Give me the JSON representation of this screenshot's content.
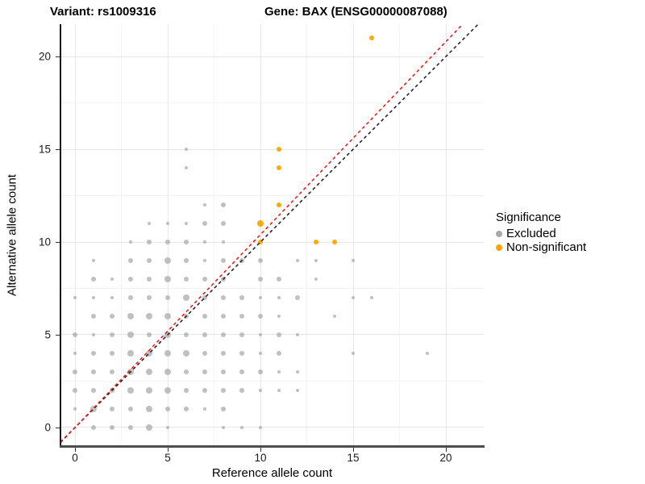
{
  "titles": {
    "variant": "Variant: rs1009316",
    "gene": "Gene: BAX (ENSG00000087088)"
  },
  "legend": {
    "title": "Significance",
    "items": [
      {
        "label": "Excluded",
        "color": "#a8a8a8"
      },
      {
        "label": "Non-significant",
        "color": "#FFA500"
      }
    ]
  },
  "chart_data": {
    "type": "scatter",
    "xlabel": "Reference allele count",
    "ylabel": "Alternative allele count",
    "xlim": [
      -0.783,
      22.04
    ],
    "ylim": [
      -0.957,
      21.74
    ],
    "x_ticks": [
      0,
      5,
      10,
      15,
      20
    ],
    "y_ticks": [
      0,
      5,
      10,
      15,
      20
    ],
    "x_minor": [
      2.5,
      7.5,
      12.5,
      17.5
    ],
    "y_minor": [
      2.5,
      7.5,
      12.5,
      17.5
    ],
    "grid": "on",
    "legend_position": "right",
    "point_diameters": {
      "s": 4.5,
      "m": 6.5,
      "l": 8.5
    },
    "series": [
      {
        "name": "Excluded",
        "color": "#a8a8a8",
        "opacity": 0.72,
        "points": [
          [
            1,
            0,
            "m"
          ],
          [
            2,
            0,
            "m"
          ],
          [
            3,
            0,
            "m"
          ],
          [
            4,
            0,
            "l"
          ],
          [
            5,
            0,
            "s"
          ],
          [
            8,
            0,
            "s"
          ],
          [
            9,
            0,
            "s"
          ],
          [
            10,
            0,
            "s"
          ],
          [
            0,
            1,
            "s"
          ],
          [
            1,
            1,
            "l"
          ],
          [
            2,
            1,
            "m"
          ],
          [
            3,
            1,
            "m"
          ],
          [
            4,
            1,
            "l"
          ],
          [
            5,
            1,
            "m"
          ],
          [
            6,
            1,
            "m"
          ],
          [
            7,
            1,
            "s"
          ],
          [
            8,
            1,
            "m"
          ],
          [
            0,
            2,
            "m"
          ],
          [
            1,
            2,
            "m"
          ],
          [
            2,
            2,
            "m"
          ],
          [
            3,
            2,
            "l"
          ],
          [
            4,
            2,
            "l"
          ],
          [
            5,
            2,
            "l"
          ],
          [
            6,
            2,
            "m"
          ],
          [
            7,
            2,
            "m"
          ],
          [
            8,
            2,
            "m"
          ],
          [
            9,
            2,
            "m"
          ],
          [
            10,
            2,
            "s"
          ],
          [
            11,
            2,
            "s"
          ],
          [
            12,
            2,
            "s"
          ],
          [
            0,
            3,
            "m"
          ],
          [
            1,
            3,
            "m"
          ],
          [
            2,
            3,
            "m"
          ],
          [
            3,
            3,
            "l"
          ],
          [
            4,
            3,
            "l"
          ],
          [
            5,
            3,
            "l"
          ],
          [
            6,
            3,
            "m"
          ],
          [
            7,
            3,
            "m"
          ],
          [
            8,
            3,
            "m"
          ],
          [
            9,
            3,
            "m"
          ],
          [
            10,
            3,
            "m"
          ],
          [
            11,
            3,
            "s"
          ],
          [
            12,
            3,
            "s"
          ],
          [
            0,
            4,
            "s"
          ],
          [
            1,
            4,
            "m"
          ],
          [
            2,
            4,
            "m"
          ],
          [
            3,
            4,
            "l"
          ],
          [
            4,
            4,
            "l"
          ],
          [
            5,
            4,
            "l"
          ],
          [
            6,
            4,
            "l"
          ],
          [
            7,
            4,
            "m"
          ],
          [
            8,
            4,
            "m"
          ],
          [
            9,
            4,
            "m"
          ],
          [
            10,
            4,
            "s"
          ],
          [
            11,
            4,
            "m"
          ],
          [
            15,
            4,
            "s"
          ],
          [
            19,
            4,
            "s"
          ],
          [
            0,
            5,
            "m"
          ],
          [
            1,
            5,
            "s"
          ],
          [
            2,
            5,
            "m"
          ],
          [
            3,
            5,
            "l"
          ],
          [
            4,
            5,
            "m"
          ],
          [
            5,
            5,
            "l"
          ],
          [
            6,
            5,
            "m"
          ],
          [
            7,
            5,
            "m"
          ],
          [
            8,
            5,
            "m"
          ],
          [
            9,
            5,
            "m"
          ],
          [
            10,
            5,
            "s"
          ],
          [
            11,
            5,
            "m"
          ],
          [
            12,
            5,
            "s"
          ],
          [
            1,
            6,
            "m"
          ],
          [
            2,
            6,
            "m"
          ],
          [
            3,
            6,
            "l"
          ],
          [
            4,
            6,
            "l"
          ],
          [
            5,
            6,
            "l"
          ],
          [
            6,
            6,
            "m"
          ],
          [
            7,
            6,
            "m"
          ],
          [
            8,
            6,
            "m"
          ],
          [
            9,
            6,
            "m"
          ],
          [
            10,
            6,
            "m"
          ],
          [
            11,
            6,
            "s"
          ],
          [
            14,
            6,
            "s"
          ],
          [
            0,
            7,
            "s"
          ],
          [
            1,
            7,
            "s"
          ],
          [
            2,
            7,
            "s"
          ],
          [
            3,
            7,
            "m"
          ],
          [
            4,
            7,
            "m"
          ],
          [
            5,
            7,
            "m"
          ],
          [
            6,
            7,
            "l"
          ],
          [
            7,
            7,
            "m"
          ],
          [
            8,
            7,
            "m"
          ],
          [
            9,
            7,
            "m"
          ],
          [
            10,
            7,
            "s"
          ],
          [
            11,
            7,
            "s"
          ],
          [
            12,
            7,
            "m"
          ],
          [
            15,
            7,
            "s"
          ],
          [
            16,
            7,
            "s"
          ],
          [
            1,
            8,
            "m"
          ],
          [
            2,
            8,
            "s"
          ],
          [
            3,
            8,
            "m"
          ],
          [
            4,
            8,
            "m"
          ],
          [
            5,
            8,
            "l"
          ],
          [
            6,
            8,
            "m"
          ],
          [
            7,
            8,
            "m"
          ],
          [
            8,
            8,
            "m"
          ],
          [
            10,
            8,
            "m"
          ],
          [
            11,
            8,
            "m"
          ],
          [
            13,
            8,
            "s"
          ],
          [
            1,
            9,
            "s"
          ],
          [
            3,
            9,
            "m"
          ],
          [
            4,
            9,
            "m"
          ],
          [
            5,
            9,
            "l"
          ],
          [
            6,
            9,
            "m"
          ],
          [
            7,
            9,
            "s"
          ],
          [
            8,
            9,
            "m"
          ],
          [
            9,
            9,
            "m"
          ],
          [
            10,
            9,
            "m"
          ],
          [
            12,
            9,
            "s"
          ],
          [
            13,
            9,
            "s"
          ],
          [
            15,
            9,
            "s"
          ],
          [
            3,
            10,
            "s"
          ],
          [
            4,
            10,
            "m"
          ],
          [
            5,
            10,
            "m"
          ],
          [
            6,
            10,
            "m"
          ],
          [
            7,
            10,
            "s"
          ],
          [
            8,
            10,
            "s"
          ],
          [
            4,
            11,
            "s"
          ],
          [
            5,
            11,
            "s"
          ],
          [
            6,
            11,
            "s"
          ],
          [
            7,
            11,
            "m"
          ],
          [
            8,
            11,
            "m"
          ],
          [
            7,
            12,
            "s"
          ],
          [
            8,
            12,
            "m"
          ],
          [
            6,
            14,
            "s"
          ],
          [
            6,
            15,
            "s"
          ]
        ]
      },
      {
        "name": "Non-significant",
        "color": "#FFA500",
        "opacity": 0.95,
        "points": [
          [
            10,
            10,
            "m"
          ],
          [
            13,
            10,
            "m"
          ],
          [
            14,
            10,
            "m"
          ],
          [
            10,
            11,
            "l"
          ],
          [
            11,
            12,
            "m"
          ],
          [
            11,
            14,
            "m"
          ],
          [
            11,
            15,
            "m"
          ],
          [
            16,
            21,
            "m"
          ]
        ]
      }
    ],
    "lines": [
      {
        "name": "identity",
        "slope": 1.0,
        "intercept": 0,
        "color": "#1c1c1c",
        "style": "dashed"
      },
      {
        "name": "expected-ratio",
        "slope": 1.04,
        "intercept": 0,
        "color": "#ee1111",
        "style": "dashed"
      }
    ]
  }
}
